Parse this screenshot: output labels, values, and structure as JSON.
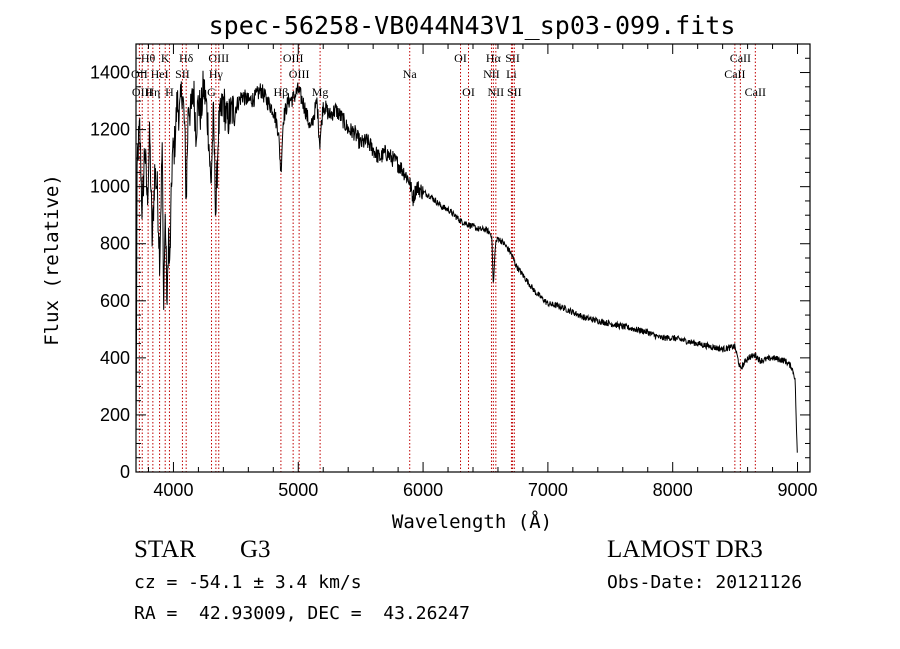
{
  "chart_data": {
    "type": "line",
    "title": "spec-56258-VB044N43V1_sp03-099.fits",
    "xlabel": "Wavelength (Å)",
    "ylabel": "Flux (relative)",
    "xlim": [
      3700,
      9100
    ],
    "ylim": [
      0,
      1500
    ],
    "xticks": [
      4000,
      5000,
      6000,
      7000,
      8000,
      9000
    ],
    "yticks": [
      0,
      200,
      400,
      600,
      800,
      1000,
      1200,
      1400
    ],
    "grid": false,
    "series": [
      {
        "name": "spectrum",
        "x": [
          3700,
          3710,
          3730,
          3750,
          3770,
          3790,
          3810,
          3830,
          3850,
          3870,
          3890,
          3910,
          3920,
          3935,
          3950,
          3960,
          3970,
          3990,
          4010,
          4030,
          4050,
          4070,
          4090,
          4102,
          4120,
          4140,
          4160,
          4180,
          4200,
          4220,
          4240,
          4260,
          4280,
          4300,
          4320,
          4340,
          4360,
          4380,
          4400,
          4430,
          4460,
          4500,
          4550,
          4600,
          4650,
          4700,
          4750,
          4800,
          4840,
          4861,
          4880,
          4920,
          4960,
          5000,
          5050,
          5100,
          5150,
          5172,
          5200,
          5250,
          5300,
          5350,
          5400,
          5450,
          5500,
          5550,
          5600,
          5650,
          5700,
          5750,
          5800,
          5850,
          5890,
          5920,
          5950,
          6000,
          6050,
          6100,
          6150,
          6200,
          6250,
          6300,
          6350,
          6400,
          6450,
          6500,
          6530,
          6550,
          6563,
          6580,
          6600,
          6650,
          6700,
          6750,
          6800,
          6850,
          6900,
          6950,
          7000,
          7100,
          7200,
          7300,
          7400,
          7500,
          7600,
          7700,
          7800,
          7900,
          8000,
          8100,
          8200,
          8300,
          8400,
          8498,
          8542,
          8600,
          8662,
          8700,
          8800,
          8900,
          8950,
          8980,
          9000
        ],
        "values": [
          100,
          1100,
          1200,
          900,
          1150,
          950,
          1180,
          800,
          1050,
          1000,
          750,
          1150,
          600,
          900,
          560,
          850,
          700,
          1100,
          1150,
          1300,
          1250,
          1350,
          1200,
          950,
          1300,
          1250,
          1350,
          1200,
          1300,
          1250,
          1350,
          1300,
          1200,
          1000,
          1250,
          900,
          1200,
          1250,
          1300,
          1230,
          1260,
          1280,
          1320,
          1300,
          1310,
          1340,
          1300,
          1270,
          1200,
          1050,
          1240,
          1300,
          1310,
          1340,
          1280,
          1200,
          1300,
          1150,
          1290,
          1250,
          1270,
          1240,
          1200,
          1190,
          1150,
          1160,
          1130,
          1100,
          1120,
          1100,
          1080,
          1050,
          1020,
          960,
          1000,
          980,
          970,
          950,
          930,
          920,
          900,
          880,
          870,
          860,
          850,
          850,
          840,
          830,
          650,
          800,
          820,
          800,
          770,
          720,
          690,
          660,
          630,
          610,
          590,
          580,
          560,
          540,
          530,
          520,
          510,
          500,
          490,
          470,
          470,
          460,
          450,
          440,
          430,
          440,
          360,
          400,
          410,
          390,
          400,
          390,
          370,
          330,
          30
        ]
      }
    ],
    "lines": [
      {
        "label": "Hθ",
        "x": 3797,
        "row": 1
      },
      {
        "label": "K",
        "x": 3934,
        "row": 1
      },
      {
        "label": "Hδ",
        "x": 4102,
        "row": 1
      },
      {
        "label": "OIII",
        "x": 4363,
        "row": 1
      },
      {
        "label": "OIII",
        "x": 4959,
        "row": 1
      },
      {
        "label": "OI",
        "x": 6300,
        "row": 1
      },
      {
        "label": "Hα",
        "x": 6563,
        "row": 1
      },
      {
        "label": "SII",
        "x": 6717,
        "row": 1
      },
      {
        "label": "CaII",
        "x": 8542,
        "row": 1
      },
      {
        "label": "OII",
        "x": 3727,
        "row": 2
      },
      {
        "label": "HeI",
        "x": 3889,
        "row": 2
      },
      {
        "label": "SII",
        "x": 4072,
        "row": 2
      },
      {
        "label": "Hγ",
        "x": 4340,
        "row": 2
      },
      {
        "label": "OIII",
        "x": 5007,
        "row": 2
      },
      {
        "label": "Na",
        "x": 5893,
        "row": 2
      },
      {
        "label": "NII",
        "x": 6548,
        "row": 2
      },
      {
        "label": "Li",
        "x": 6708,
        "row": 2
      },
      {
        "label": "CaII",
        "x": 8498,
        "row": 2
      },
      {
        "label": "OIII",
        "x": 3750,
        "row": 3
      },
      {
        "label": "Hη",
        "x": 3835,
        "row": 3
      },
      {
        "label": "H",
        "x": 3968,
        "row": 3
      },
      {
        "label": "G",
        "x": 4305,
        "row": 3
      },
      {
        "label": "Hβ",
        "x": 4861,
        "row": 3
      },
      {
        "label": "Mg",
        "x": 5175,
        "row": 3
      },
      {
        "label": "OI",
        "x": 6364,
        "row": 3
      },
      {
        "label": "NII",
        "x": 6583,
        "row": 3
      },
      {
        "label": "SII",
        "x": 6731,
        "row": 3
      },
      {
        "label": "CaII",
        "x": 8662,
        "row": 3
      }
    ]
  },
  "info": {
    "object_class": "STAR",
    "subclass": "G3",
    "survey": "LAMOST DR3",
    "redshift": "cz = -54.1 ± 3.4 km/s",
    "obs_date": "Obs-Date: 20121126",
    "coords": "RA =  42.93009, DEC =  43.26247"
  }
}
